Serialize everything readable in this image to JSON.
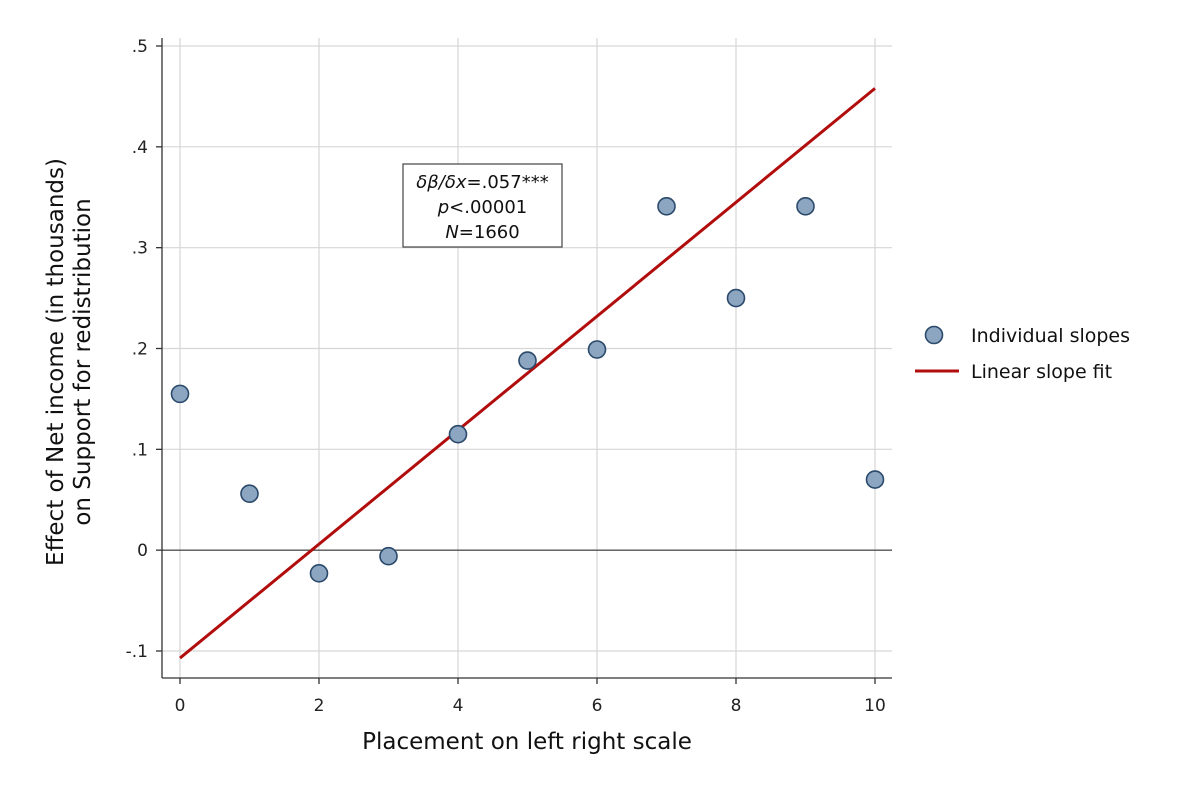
{
  "chart_data": {
    "type": "scatter",
    "xlabel": "Placement on left right scale",
    "ylabel_lines": [
      "Effect of Net income (in thousands)",
      "on Support for redistribution"
    ],
    "xlim": [
      0,
      10
    ],
    "ylim": [
      -0.1,
      0.5
    ],
    "xticks": [
      0,
      2,
      4,
      6,
      8,
      10
    ],
    "xtick_labels": [
      "0",
      "2",
      "4",
      "6",
      "8",
      "10"
    ],
    "yticks": [
      -0.1,
      0,
      0.1,
      0.2,
      0.3,
      0.4,
      0.5
    ],
    "ytick_labels": [
      "-.1",
      "0",
      ".1",
      ".2",
      ".3",
      ".4",
      ".5"
    ],
    "grid": true,
    "reference_line_y": 0,
    "legend_position": "right",
    "series": [
      {
        "name": "Individual slopes",
        "kind": "scatter",
        "color": "#8ca6c2",
        "edge_color": "#2b4a6b",
        "points": [
          {
            "x": 0,
            "y": 0.155
          },
          {
            "x": 1,
            "y": 0.056
          },
          {
            "x": 2,
            "y": -0.023
          },
          {
            "x": 3,
            "y": -0.006
          },
          {
            "x": 4,
            "y": 0.115
          },
          {
            "x": 5,
            "y": 0.188
          },
          {
            "x": 6,
            "y": 0.199
          },
          {
            "x": 7,
            "y": 0.341
          },
          {
            "x": 8,
            "y": 0.25
          },
          {
            "x": 9,
            "y": 0.341
          },
          {
            "x": 10,
            "y": 0.07
          }
        ]
      },
      {
        "name": "Linear slope fit",
        "kind": "line",
        "color": "#b20d0d",
        "points": [
          {
            "x": 0,
            "y": -0.107
          },
          {
            "x": 10,
            "y": 0.458
          }
        ]
      }
    ],
    "annotation": {
      "lines": [
        [
          {
            "text": "δβ/δx",
            "italic": true
          },
          {
            "text": "=.057***",
            "italic": false
          }
        ],
        [
          {
            "text": "p",
            "italic": true
          },
          {
            "text": "<.00001",
            "italic": false
          }
        ],
        [
          {
            "text": "N",
            "italic": true
          },
          {
            "text": "=1660",
            "italic": false
          }
        ]
      ]
    }
  }
}
